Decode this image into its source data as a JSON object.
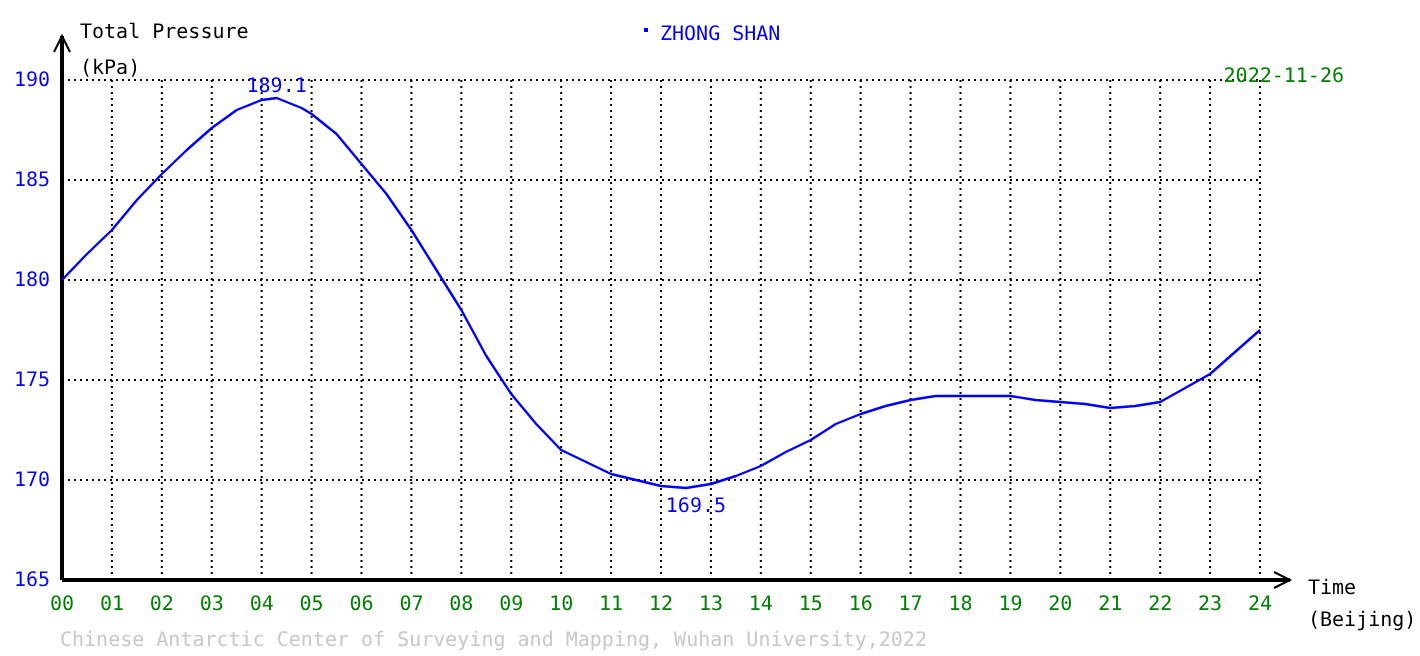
{
  "chart_data": {
    "type": "line",
    "title": "ZHONG SHAN",
    "subtitle": "2022-11-26",
    "xlabel": "Time\n(Beijing)",
    "ylabel": "Total Pressure\n(kPa)",
    "x": [
      0,
      0.5,
      1,
      1.5,
      2,
      2.5,
      3,
      3.5,
      4,
      4.3,
      4.8,
      5,
      5.5,
      6,
      6.5,
      7,
      7.5,
      8,
      8.5,
      9,
      9.5,
      10,
      10.5,
      11,
      11.5,
      12,
      12.5,
      13,
      13.5,
      14,
      14.5,
      15,
      15.5,
      16,
      16.5,
      17,
      17.5,
      18,
      18.5,
      19,
      19.5,
      20,
      20.5,
      21,
      21.5,
      22,
      22.5,
      23,
      23.5,
      24
    ],
    "series": [
      {
        "color": "#0000ff",
        "values": [
          180.0,
          181.3,
          182.5,
          184.0,
          185.3,
          186.5,
          187.6,
          188.5,
          189.0,
          189.1,
          188.6,
          188.3,
          187.3,
          185.8,
          184.3,
          182.5,
          180.5,
          178.5,
          176.2,
          174.3,
          172.8,
          171.5,
          170.9,
          170.3,
          170.0,
          169.7,
          169.6,
          169.8,
          170.2,
          170.7,
          171.4,
          172.0,
          172.8,
          173.3,
          173.7,
          174.0,
          174.2,
          174.2,
          174.2,
          174.2,
          174.0,
          173.9,
          173.8,
          173.6,
          173.7,
          173.9,
          174.6,
          175.3,
          176.4,
          177.5
        ]
      }
    ],
    "xlim": [
      0,
      24
    ],
    "xticks": [
      {
        "value": 0,
        "label": "00"
      },
      {
        "value": 1,
        "label": "01"
      },
      {
        "value": 2,
        "label": "02"
      },
      {
        "value": 3,
        "label": "03"
      },
      {
        "value": 4,
        "label": "04"
      },
      {
        "value": 5,
        "label": "05"
      },
      {
        "value": 6,
        "label": "06"
      },
      {
        "value": 7,
        "label": "07"
      },
      {
        "value": 8,
        "label": "08"
      },
      {
        "value": 9,
        "label": "09"
      },
      10,
      11,
      12,
      13,
      14,
      15,
      16,
      17,
      18,
      19,
      20,
      21,
      22,
      23,
      24
    ],
    "ylim": [
      165,
      190
    ],
    "yticks": [
      165,
      170,
      175,
      180,
      185,
      190
    ],
    "grid": true,
    "marker": "none",
    "line_style": "solid",
    "annotations": [
      {
        "text": "189.1",
        "x": 4.3,
        "y": 189.1
      },
      {
        "text": "169.5",
        "x": 12.7,
        "y": 169.5
      },
      "Chinese Antarctic Center of Surveying and Mapping, Wuhan University,2022"
    ]
  }
}
